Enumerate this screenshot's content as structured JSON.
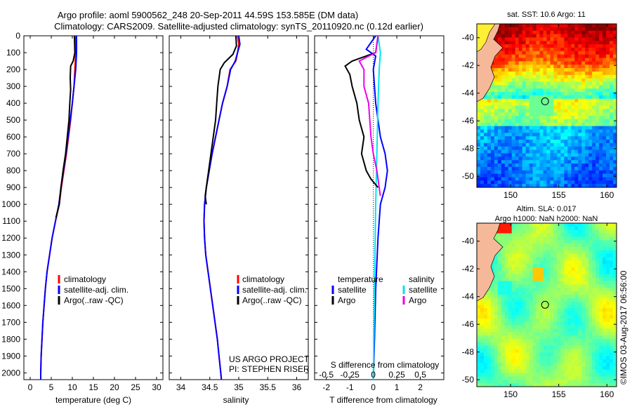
{
  "header": {
    "title_line1": "Argo profile: aoml 5900562_248 20-Sep-2011 44.59S 153.585E (DM data)",
    "title_line2": "Climatology: CARS2009. Satellite-adjusted climatology: synTS_20110920.nc (0.12d earlier)"
  },
  "colors": {
    "climatology": "#ff0000",
    "satellite": "#0000ff",
    "argo": "#000000",
    "sal_satellite": "#00e5ee",
    "sal_argo": "#ee00ee",
    "land": "#f5b99a"
  },
  "depth_axis": {
    "ticks": [
      "0",
      "100",
      "200",
      "300",
      "400",
      "500",
      "600",
      "700",
      "800",
      "900",
      "1000",
      "1100",
      "1200",
      "1300",
      "1400",
      "1500",
      "1600",
      "1700",
      "1800",
      "1900",
      "2000"
    ],
    "range": [
      0,
      2040
    ]
  },
  "chart_data": [
    {
      "id": "temperature",
      "type": "line",
      "xlabel": "temperature (deg C)",
      "xlim": [
        -1.5,
        31.5
      ],
      "xticks": [
        "0",
        "5",
        "10",
        "15",
        "20",
        "25",
        "30"
      ],
      "xtick_values": [
        0,
        5,
        10,
        15,
        20,
        25,
        30
      ],
      "legend": [
        "climatology",
        "satellite-adj. clim.",
        "Argo(..raw -QC)"
      ],
      "series": [
        {
          "name": "climatology",
          "color": "#ff0000",
          "points": [
            [
              10.8,
              0
            ],
            [
              10.8,
              100
            ],
            [
              10.6,
              200
            ],
            [
              10.4,
              300
            ],
            [
              10.0,
              400
            ],
            [
              9.6,
              500
            ],
            [
              9.1,
              600
            ],
            [
              8.6,
              700
            ],
            [
              8.0,
              800
            ],
            [
              7.4,
              900
            ],
            [
              6.9,
              1000
            ],
            [
              6.0,
              1100
            ],
            [
              5.2,
              1200
            ],
            [
              4.6,
              1300
            ],
            [
              4.0,
              1400
            ],
            [
              3.6,
              1500
            ],
            [
              3.3,
              1600
            ],
            [
              3.0,
              1700
            ],
            [
              2.8,
              1800
            ],
            [
              2.6,
              1900
            ],
            [
              2.5,
              2000
            ],
            [
              2.5,
              2040
            ]
          ]
        },
        {
          "name": "satellite-adj. clim.",
          "color": "#0000ff",
          "points": [
            [
              11.0,
              0
            ],
            [
              11.0,
              100
            ],
            [
              10.8,
              200
            ],
            [
              10.4,
              300
            ],
            [
              10.0,
              400
            ],
            [
              9.5,
              500
            ],
            [
              9.0,
              600
            ],
            [
              8.5,
              700
            ],
            [
              7.9,
              800
            ],
            [
              7.3,
              900
            ],
            [
              6.8,
              1000
            ],
            [
              6.0,
              1100
            ],
            [
              5.2,
              1200
            ],
            [
              4.6,
              1300
            ],
            [
              4.0,
              1400
            ],
            [
              3.6,
              1500
            ],
            [
              3.3,
              1600
            ],
            [
              3.0,
              1700
            ],
            [
              2.8,
              1800
            ],
            [
              2.6,
              1900
            ],
            [
              2.5,
              2000
            ],
            [
              2.5,
              2040
            ]
          ]
        },
        {
          "name": "Argo(..raw -QC)",
          "color": "#000000",
          "points": [
            [
              10.5,
              0
            ],
            [
              10.6,
              100
            ],
            [
              10.2,
              150
            ],
            [
              9.6,
              180
            ],
            [
              9.5,
              250
            ],
            [
              9.6,
              320
            ],
            [
              9.4,
              400
            ],
            [
              9.2,
              500
            ],
            [
              8.8,
              600
            ],
            [
              8.4,
              700
            ],
            [
              7.8,
              800
            ],
            [
              7.3,
              900
            ],
            [
              6.9,
              1000
            ],
            [
              6.1,
              1080
            ]
          ]
        }
      ]
    },
    {
      "id": "salinity",
      "type": "line",
      "xlabel": "salinity",
      "xlim": [
        33.8,
        36.2
      ],
      "xticks": [
        "34",
        "34.5",
        "35",
        "35.5",
        "36"
      ],
      "xtick_values": [
        34,
        34.5,
        35,
        35.5,
        36
      ],
      "legend": [
        "climatology",
        "satellite-adj. clim.",
        "Argo(..raw -QC)"
      ],
      "annotation": [
        "US ARGO PROJECT",
        "PI: STEPHEN RISER"
      ],
      "series": [
        {
          "name": "climatology",
          "color": "#ff0000",
          "points": [
            [
              34.98,
              0
            ],
            [
              35.0,
              50
            ],
            [
              34.98,
              100
            ],
            [
              34.95,
              150
            ],
            [
              34.85,
              200
            ],
            [
              34.8,
              300
            ],
            [
              34.72,
              400
            ],
            [
              34.66,
              500
            ],
            [
              34.6,
              600
            ],
            [
              34.54,
              700
            ],
            [
              34.49,
              800
            ],
            [
              34.44,
              900
            ],
            [
              34.41,
              1000
            ],
            [
              34.4,
              1100
            ],
            [
              34.41,
              1200
            ],
            [
              34.43,
              1300
            ],
            [
              34.47,
              1400
            ],
            [
              34.51,
              1500
            ],
            [
              34.55,
              1600
            ],
            [
              34.59,
              1700
            ],
            [
              34.63,
              1800
            ],
            [
              34.66,
              1900
            ],
            [
              34.69,
              2000
            ],
            [
              34.7,
              2040
            ]
          ]
        },
        {
          "name": "satellite-adj. clim.",
          "color": "#0000ff",
          "points": [
            [
              35.0,
              0
            ],
            [
              35.02,
              50
            ],
            [
              34.98,
              100
            ],
            [
              34.94,
              150
            ],
            [
              34.86,
              200
            ],
            [
              34.8,
              300
            ],
            [
              34.72,
              400
            ],
            [
              34.66,
              500
            ],
            [
              34.6,
              600
            ],
            [
              34.54,
              700
            ],
            [
              34.49,
              800
            ],
            [
              34.44,
              900
            ],
            [
              34.41,
              1000
            ],
            [
              34.4,
              1100
            ],
            [
              34.41,
              1200
            ],
            [
              34.43,
              1300
            ],
            [
              34.47,
              1400
            ],
            [
              34.51,
              1500
            ],
            [
              34.55,
              1600
            ],
            [
              34.59,
              1700
            ],
            [
              34.63,
              1800
            ],
            [
              34.66,
              1900
            ],
            [
              34.69,
              2000
            ],
            [
              34.7,
              2040
            ]
          ]
        },
        {
          "name": "Argo(..raw -QC)",
          "color": "#000000",
          "points": [
            [
              34.95,
              0
            ],
            [
              34.96,
              60
            ],
            [
              34.9,
              110
            ],
            [
              34.75,
              160
            ],
            [
              34.68,
              200
            ],
            [
              34.64,
              300
            ],
            [
              34.62,
              400
            ],
            [
              34.6,
              500
            ],
            [
              34.56,
              600
            ],
            [
              34.52,
              700
            ],
            [
              34.48,
              800
            ],
            [
              34.44,
              900
            ],
            [
              34.42,
              950
            ],
            [
              34.44,
              1000
            ]
          ]
        }
      ]
    },
    {
      "id": "difference",
      "type": "line",
      "xlabel": "T difference from climatology",
      "xlim": [
        -2.5,
        3.0
      ],
      "xticks": [
        "-2",
        "-1",
        "0",
        "1",
        "2"
      ],
      "xtick_values": [
        -2,
        -1,
        0,
        1,
        2
      ],
      "top_label": "S difference from climatology",
      "top_ticks": [
        "-0.5",
        "-0.25",
        "0",
        "0.25",
        "0.5"
      ],
      "top_tick_values": [
        -2,
        -1,
        0,
        1,
        2
      ],
      "legend_temperature": {
        "header": "temperature",
        "items": [
          "satellite",
          "Argo"
        ]
      },
      "legend_salinity": {
        "header": "salinity",
        "items": [
          "satellite",
          "Argo"
        ]
      },
      "series": [
        {
          "name": "temperature satellite",
          "color": "#0000ff",
          "points": [
            [
              0.1,
              0
            ],
            [
              -0.3,
              80
            ],
            [
              0.1,
              120
            ],
            [
              0.0,
              200
            ],
            [
              0.1,
              400
            ],
            [
              0.3,
              600
            ],
            [
              0.5,
              700
            ],
            [
              0.6,
              800
            ],
            [
              0.5,
              900
            ],
            [
              0.3,
              1000
            ],
            [
              0.2,
              1200
            ],
            [
              0.1,
              1500
            ],
            [
              0.05,
              1800
            ],
            [
              0.0,
              2040
            ]
          ]
        },
        {
          "name": "salinity satellite",
          "color": "#00e5ee",
          "points": [
            [
              0.2,
              0
            ],
            [
              0.3,
              100
            ],
            [
              0.25,
              200
            ],
            [
              0.2,
              400
            ],
            [
              0.15,
              700
            ],
            [
              0.1,
              1000
            ],
            [
              0.05,
              1500
            ],
            [
              0.0,
              2040
            ]
          ]
        },
        {
          "name": "temperature Argo",
          "color": "#000000",
          "points": [
            [
              0.2,
              0
            ],
            [
              0.1,
              100
            ],
            [
              -0.9,
              150
            ],
            [
              -1.2,
              180
            ],
            [
              -1.0,
              230
            ],
            [
              -0.9,
              300
            ],
            [
              -0.7,
              400
            ],
            [
              -0.6,
              500
            ],
            [
              -0.4,
              600
            ],
            [
              -0.5,
              700
            ],
            [
              -0.3,
              800
            ],
            [
              -0.1,
              850
            ],
            [
              0.2,
              900
            ]
          ]
        },
        {
          "name": "salinity Argo",
          "color": "#ee00ee",
          "points": [
            [
              0.2,
              0
            ],
            [
              0.1,
              100
            ],
            [
              -0.6,
              150
            ],
            [
              -0.4,
              200
            ],
            [
              -0.4,
              300
            ],
            [
              -0.2,
              400
            ],
            [
              -0.15,
              500
            ],
            [
              -0.1,
              600
            ],
            [
              0.0,
              700
            ],
            [
              0.15,
              800
            ],
            [
              0.25,
              900
            ],
            [
              0.3,
              950
            ]
          ]
        }
      ]
    },
    {
      "id": "sst_map",
      "type": "heatmap",
      "title": "sat. SST: 10.6  Argo: 11",
      "xticks": [
        "150",
        "155",
        "160"
      ],
      "xtick_values": [
        150,
        155,
        160
      ],
      "yticks": [
        "-40",
        "-42",
        "-44",
        "-46",
        "-48",
        "-50"
      ],
      "ytick_values": [
        -40,
        -42,
        -44,
        -46,
        -48,
        -50
      ],
      "lon_range": [
        146.5,
        161
      ],
      "lat_range": [
        -50.8,
        -39
      ],
      "argo_position": [
        153.585,
        -44.59
      ]
    },
    {
      "id": "sla_map",
      "type": "heatmap",
      "title_line1": "Altim. SLA: 0.017",
      "title_line2": "Argo h1000: NaN h2000: NaN",
      "xticks": [
        "150",
        "155",
        "160"
      ],
      "xtick_values": [
        150,
        155,
        160
      ],
      "yticks": [
        "-40",
        "-42",
        "-44",
        "-46",
        "-48",
        "-50"
      ],
      "ytick_values": [
        -40,
        -42,
        -44,
        -46,
        -48,
        -50
      ],
      "lon_range": [
        146.5,
        161
      ],
      "lat_range": [
        -50.5,
        -38.7
      ],
      "argo_position": [
        153.585,
        -44.59
      ]
    }
  ],
  "footer": {
    "credit": "©IMOS 03-Aug-2017 06:56:00"
  }
}
